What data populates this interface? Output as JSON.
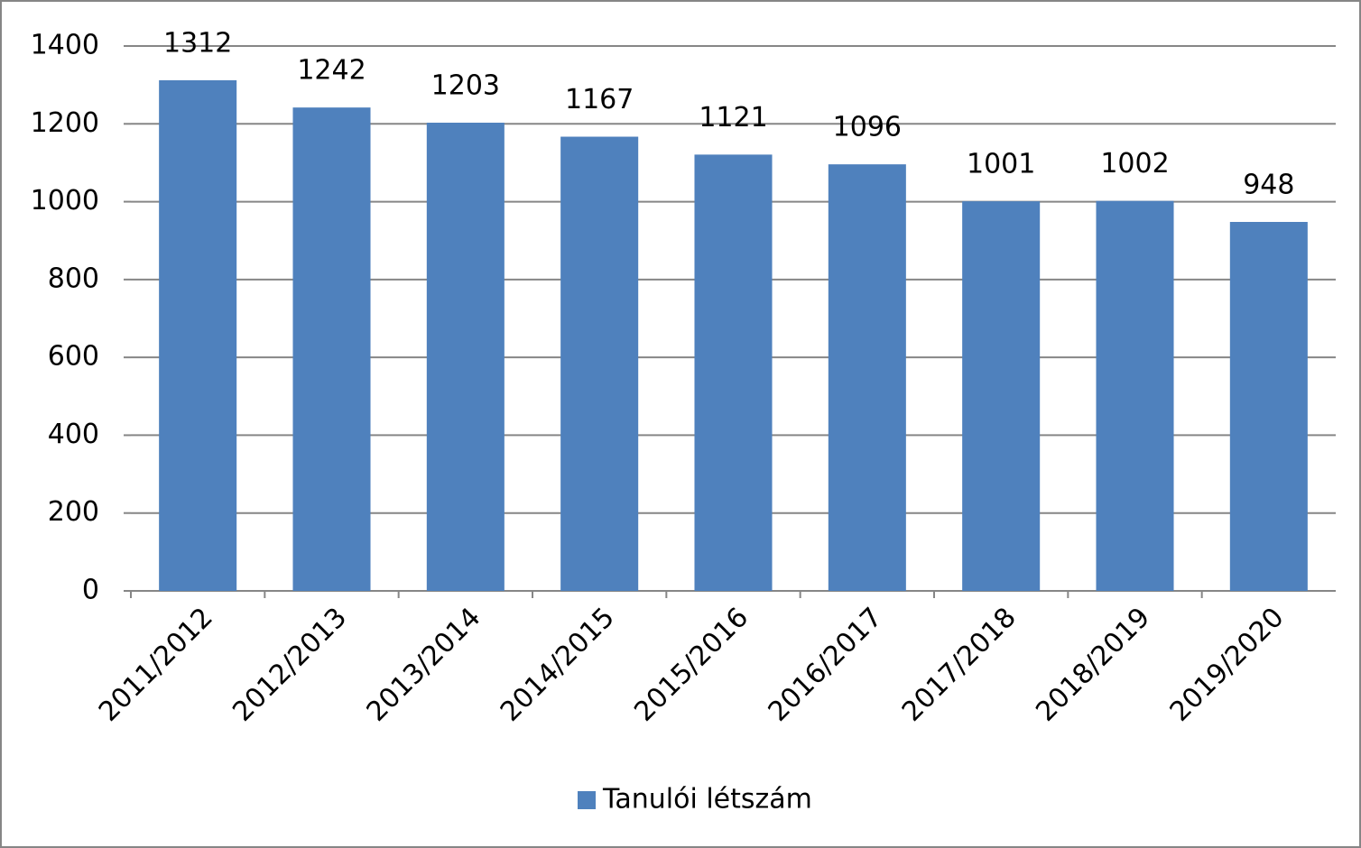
{
  "chart_data": {
    "type": "bar",
    "categories": [
      "2011/2012",
      "2012/2013",
      "2013/2014",
      "2014/2015",
      "2015/2016",
      "2016/2017",
      "2017/2018",
      "2018/2019",
      "2019/2020"
    ],
    "series": [
      {
        "name": "Tanulói létszám",
        "color": "#4f81bd",
        "values": [
          1312,
          1242,
          1203,
          1167,
          1121,
          1096,
          1001,
          1002,
          948
        ]
      }
    ],
    "ylim": [
      0,
      1400
    ],
    "yticks": [
      0,
      200,
      400,
      600,
      800,
      1000,
      1200,
      1400
    ],
    "grid": true,
    "legend": "bottom"
  }
}
